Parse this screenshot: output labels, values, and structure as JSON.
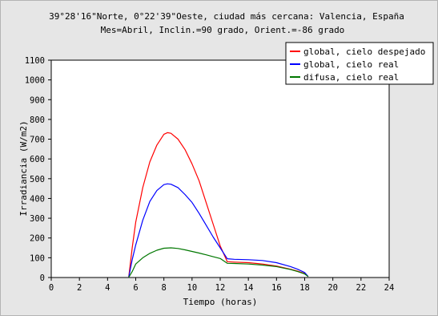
{
  "chart_data": {
    "type": "line",
    "title_line1": "39°28'16\"Norte, 0°22'39\"Oeste, ciudad más cercana: Valencia, España",
    "title_line2": "Mes=Abril, Inclin.=90 grado, Orient.=-86 grado",
    "xlabel": "Tiempo (horas)",
    "ylabel": "Irradiancia (W/m2)",
    "xlim": [
      0,
      24
    ],
    "ylim": [
      0,
      1100
    ],
    "xticks": [
      0,
      2,
      4,
      6,
      8,
      10,
      12,
      14,
      16,
      18,
      20,
      22,
      24
    ],
    "yticks": [
      0,
      100,
      200,
      300,
      400,
      500,
      600,
      700,
      800,
      900,
      1000,
      1100
    ],
    "grid": false,
    "legend_position": "top-right",
    "colors": {
      "background": "#e6e6e6",
      "plot_area": "#ffffff"
    },
    "series": [
      {
        "name": "global, cielo despejado",
        "color": "#ff0000",
        "points": [
          [
            5.5,
            0
          ],
          [
            5.75,
            150
          ],
          [
            6,
            280
          ],
          [
            6.5,
            455
          ],
          [
            7,
            585
          ],
          [
            7.5,
            670
          ],
          [
            8,
            725
          ],
          [
            8.25,
            733
          ],
          [
            8.5,
            730
          ],
          [
            9,
            700
          ],
          [
            9.5,
            648
          ],
          [
            10,
            575
          ],
          [
            10.5,
            490
          ],
          [
            11,
            380
          ],
          [
            11.5,
            270
          ],
          [
            12,
            160
          ],
          [
            12.5,
            80
          ],
          [
            13,
            78
          ],
          [
            14,
            75
          ],
          [
            15,
            68
          ],
          [
            16,
            58
          ],
          [
            17,
            42
          ],
          [
            17.5,
            32
          ],
          [
            18,
            20
          ],
          [
            18.25,
            5
          ]
        ]
      },
      {
        "name": "global, cielo real",
        "color": "#0000ff",
        "points": [
          [
            5.5,
            0
          ],
          [
            5.75,
            90
          ],
          [
            6,
            165
          ],
          [
            6.5,
            290
          ],
          [
            7,
            385
          ],
          [
            7.5,
            440
          ],
          [
            8,
            470
          ],
          [
            8.25,
            474
          ],
          [
            8.5,
            472
          ],
          [
            9,
            455
          ],
          [
            9.5,
            420
          ],
          [
            10,
            380
          ],
          [
            10.5,
            325
          ],
          [
            11,
            265
          ],
          [
            11.5,
            205
          ],
          [
            12,
            150
          ],
          [
            12.5,
            95
          ],
          [
            13,
            92
          ],
          [
            14,
            90
          ],
          [
            15,
            86
          ],
          [
            16,
            75
          ],
          [
            17,
            55
          ],
          [
            17.5,
            42
          ],
          [
            18,
            25
          ],
          [
            18.25,
            5
          ]
        ]
      },
      {
        "name": "difusa, cielo real",
        "color": "#007700",
        "points": [
          [
            5.5,
            0
          ],
          [
            5.75,
            30
          ],
          [
            6,
            68
          ],
          [
            6.5,
            100
          ],
          [
            7,
            122
          ],
          [
            7.5,
            138
          ],
          [
            8,
            148
          ],
          [
            8.5,
            150
          ],
          [
            9,
            147
          ],
          [
            9.5,
            140
          ],
          [
            10,
            132
          ],
          [
            10.5,
            124
          ],
          [
            11,
            115
          ],
          [
            11.5,
            105
          ],
          [
            12,
            96
          ],
          [
            12.5,
            72
          ],
          [
            13,
            71
          ],
          [
            14,
            68
          ],
          [
            15,
            63
          ],
          [
            16,
            55
          ],
          [
            17,
            40
          ],
          [
            17.5,
            30
          ],
          [
            18,
            18
          ],
          [
            18.25,
            5
          ]
        ]
      }
    ]
  }
}
